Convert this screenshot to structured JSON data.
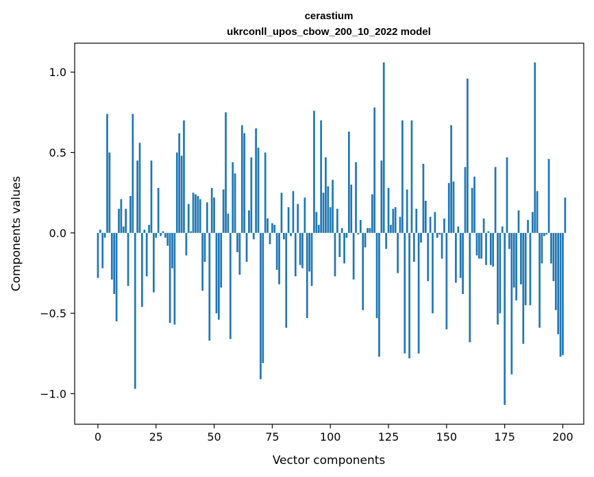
{
  "chart_data": {
    "type": "bar",
    "title_line1": "cerastium",
    "title_line2": "ukrconll_upos_cbow_200_10_2022 model",
    "xlabel": "Vector components",
    "ylabel": "Components values",
    "xlim": [
      -10,
      209
    ],
    "ylim": [
      -1.19,
      1.18
    ],
    "xticks": [
      0,
      25,
      50,
      75,
      100,
      125,
      150,
      175,
      200
    ],
    "xtick_labels": [
      "0",
      "25",
      "50",
      "75",
      "100",
      "125",
      "150",
      "175",
      "200"
    ],
    "yticks": [
      -1.0,
      -0.5,
      0.0,
      0.5,
      1.0
    ],
    "ytick_labels": [
      "−1.0",
      "−0.5",
      "0.0",
      "0.5",
      "1.0"
    ],
    "bar_color": "#1f77b4",
    "values": [
      -0.28,
      0.02,
      -0.22,
      -0.03,
      0.74,
      0.5,
      -0.29,
      -0.38,
      -0.55,
      0.15,
      0.21,
      0.04,
      0.15,
      -0.33,
      0.23,
      0.74,
      -0.97,
      0.45,
      0.56,
      -0.46,
      0.02,
      -0.27,
      0.05,
      0.45,
      -0.37,
      -0.03,
      0.28,
      -0.02,
      0.01,
      -0.03,
      -0.08,
      -0.56,
      -0.22,
      -0.57,
      0.5,
      0.62,
      0.48,
      0.7,
      -0.14,
      0.18,
      0.01,
      0.25,
      0.24,
      0.23,
      0.21,
      -0.36,
      -0.18,
      0.19,
      -0.67,
      0.28,
      0.22,
      -0.5,
      -0.54,
      -0.34,
      0.27,
      0.75,
      0.12,
      -0.66,
      0.44,
      0.37,
      -0.12,
      -0.26,
      0.67,
      0.62,
      -0.18,
      0.14,
      0.47,
      -0.04,
      0.65,
      0.53,
      -0.91,
      -0.81,
      0.5,
      0.09,
      -0.07,
      0.06,
      0.05,
      -0.23,
      -0.32,
      0.25,
      -0.04,
      -0.59,
      0.16,
      -0.02,
      0.26,
      -0.27,
      0.18,
      -0.2,
      -0.22,
      0.22,
      -0.53,
      -0.24,
      -0.33,
      0.76,
      0.13,
      0.05,
      0.7,
      0.25,
      0.47,
      0.29,
      0.16,
      0.33,
      -0.27,
      0.15,
      -0.15,
      0.03,
      -0.19,
      -0.03,
      0.63,
      0.3,
      -0.29,
      0.44,
      -0.01,
      0.08,
      -0.48,
      -0.09,
      0.03,
      0.03,
      0.24,
      0.78,
      -0.53,
      -0.77,
      0.45,
      1.06,
      -0.1,
      0.28,
      0.05,
      0.15,
      0.16,
      -0.25,
      0.1,
      0.7,
      -0.75,
      0.27,
      -0.78,
      0.7,
      -0.18,
      0.15,
      -0.75,
      -0.06,
      0.43,
      0.2,
      -0.3,
      0.1,
      -0.5,
      0.13,
      -0.03,
      -0.01,
      -0.16,
      0.09,
      -0.6,
      0.31,
      0.67,
      0.32,
      -0.31,
      0.04,
      -0.28,
      -0.38,
      0.41,
      0.96,
      -0.68,
      0.28,
      0.35,
      -0.14,
      -0.16,
      -0.16,
      0.09,
      -0.2,
      0.01,
      -0.2,
      -0.21,
      0.41,
      -0.57,
      -0.5,
      0.04,
      -1.07,
      0.47,
      -0.1,
      -0.88,
      -0.34,
      -0.42,
      0.14,
      -0.32,
      -0.69,
      -0.45,
      0.08,
      -0.45,
      0.13,
      1.06,
      0.26,
      -0.59,
      -0.19,
      -0.02,
      -0.01,
      0.46,
      -0.19,
      -0.3,
      -0.48,
      -0.63,
      -0.77,
      -0.76,
      0.22
    ]
  }
}
